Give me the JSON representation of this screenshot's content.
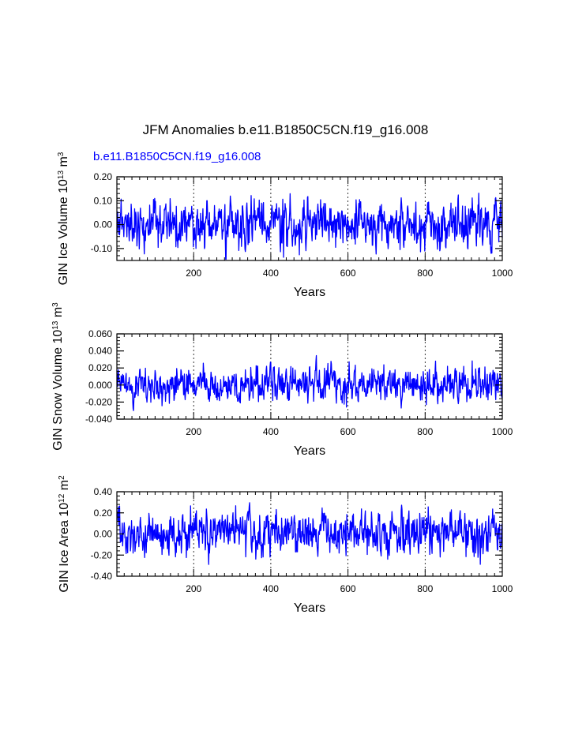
{
  "title": "JFM Anomalies b.e11.B1850C5CN.f19_g16.008",
  "case_label": "b.e11.B1850C5CN.f19_g16.008",
  "colors": {
    "series": "#0000ff",
    "axes": "#000000",
    "grid": "#000000",
    "case_label": "#0000ff"
  },
  "chart_data": [
    {
      "type": "line",
      "id": "ice-volume",
      "ylabel_main": "GIN Ice Volume 10",
      "ylabel_exp": "13",
      "ylabel_unit": " m",
      "ylabel_unit_exp": "3",
      "xlabel": "Years",
      "xlim": [
        1,
        1000
      ],
      "ylim": [
        -0.15,
        0.2
      ],
      "yticks": [
        -0.1,
        0.0,
        0.1,
        0.2
      ],
      "ytick_labels": [
        "-0.10",
        "0.00",
        "0.10",
        "0.20"
      ],
      "xticks": [
        200,
        400,
        600,
        800,
        1000
      ],
      "xtick_labels": [
        "200",
        "400",
        "600",
        "800",
        "1000"
      ],
      "grid_x": [
        200,
        400,
        600,
        800
      ],
      "series": [
        {
          "name": "b.e11.B1850C5CN.f19_g16.008",
          "seed": 11,
          "amplitude": 0.045,
          "min": -0.145,
          "max": 0.175
        }
      ]
    },
    {
      "type": "line",
      "id": "snow-volume",
      "ylabel_main": "GIN Snow Volume 10",
      "ylabel_exp": "13",
      "ylabel_unit": " m",
      "ylabel_unit_exp": "3",
      "xlabel": "Years",
      "xlim": [
        1,
        1000
      ],
      "ylim": [
        -0.04,
        0.06
      ],
      "yticks": [
        -0.04,
        -0.02,
        0.0,
        0.02,
        0.04,
        0.06
      ],
      "ytick_labels": [
        "-0.040",
        "-0.020",
        "0.000",
        "0.020",
        "0.040",
        "0.060"
      ],
      "xticks": [
        200,
        400,
        600,
        800,
        1000
      ],
      "xtick_labels": [
        "200",
        "400",
        "600",
        "800",
        "1000"
      ],
      "grid_x": [
        200,
        400,
        600,
        800
      ],
      "series": [
        {
          "name": "b.e11.B1850C5CN.f19_g16.008",
          "seed": 23,
          "amplitude": 0.0095,
          "min": -0.03,
          "max": 0.049
        }
      ]
    },
    {
      "type": "line",
      "id": "ice-area",
      "ylabel_main": "GIN Ice Area 10",
      "ylabel_exp": "12",
      "ylabel_unit": " m",
      "ylabel_unit_exp": "2",
      "xlabel": "Years",
      "xlim": [
        1,
        1000
      ],
      "ylim": [
        -0.4,
        0.4
      ],
      "yticks": [
        -0.4,
        -0.2,
        0.0,
        0.2,
        0.4
      ],
      "ytick_labels": [
        "-0.40",
        "-0.20",
        "0.00",
        "0.20",
        "0.40"
      ],
      "xticks": [
        200,
        400,
        600,
        800,
        1000
      ],
      "xtick_labels": [
        "200",
        "400",
        "600",
        "800",
        "1000"
      ],
      "grid_x": [
        200,
        400,
        600,
        800
      ],
      "series": [
        {
          "name": "b.e11.B1850C5CN.f19_g16.008",
          "seed": 37,
          "amplitude": 0.09,
          "min": -0.3,
          "max": 0.35
        }
      ]
    }
  ]
}
